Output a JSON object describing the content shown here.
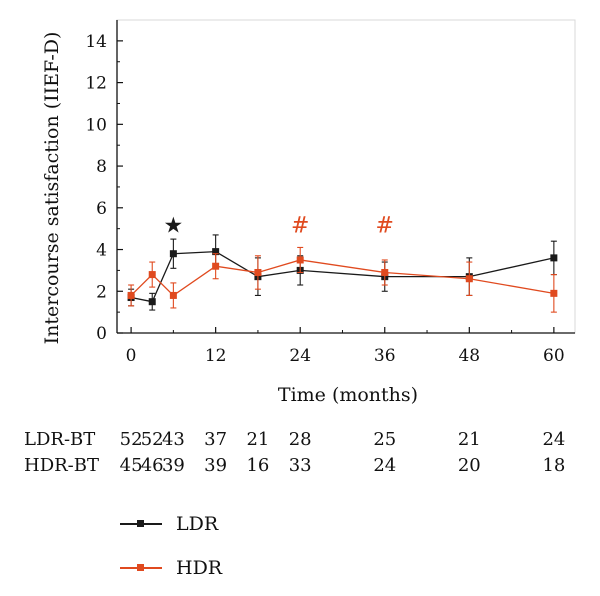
{
  "chart_data": {
    "type": "line",
    "xlabel": "Time (months)",
    "ylabel": "Intercourse satisfaction (IIEF-D)",
    "xlim": [
      -2,
      63
    ],
    "ylim": [
      0,
      15
    ],
    "x_ticks": [
      0,
      12,
      24,
      36,
      48,
      60
    ],
    "y_ticks": [
      0,
      2,
      4,
      6,
      8,
      10,
      12,
      14
    ],
    "grid": false,
    "series": [
      {
        "name": "LDR",
        "color": "#1a1a1a",
        "x": [
          0,
          3,
          6,
          12,
          18,
          24,
          36,
          48,
          60
        ],
        "values": [
          1.7,
          1.5,
          3.8,
          3.9,
          2.7,
          3.0,
          2.7,
          2.7,
          3.6
        ],
        "error": [
          0.4,
          0.4,
          0.7,
          0.8,
          0.9,
          0.7,
          0.7,
          0.9,
          0.8
        ]
      },
      {
        "name": "HDR",
        "color": "#e04a1f",
        "x": [
          0,
          3,
          6,
          12,
          18,
          24,
          36,
          48,
          60
        ],
        "values": [
          1.8,
          2.8,
          1.8,
          3.2,
          2.9,
          3.5,
          2.9,
          2.6,
          1.9
        ],
        "error": [
          0.5,
          0.6,
          0.6,
          0.6,
          0.8,
          0.6,
          0.6,
          0.8,
          0.9
        ]
      }
    ],
    "annotations": [
      {
        "text": "★",
        "x": 6,
        "y": 5.2,
        "color": "#1a1a1a"
      },
      {
        "text": "#",
        "x": 24,
        "y": 5.2,
        "color": "#e04a1f"
      },
      {
        "text": "#",
        "x": 36,
        "y": 5.2,
        "color": "#e04a1f"
      }
    ],
    "number_at_risk": {
      "x": [
        0,
        3,
        6,
        12,
        18,
        24,
        36,
        48,
        60
      ],
      "rows": [
        {
          "label": "LDR-BT",
          "values": [
            "52",
            "52",
            "43",
            "37",
            "21",
            "28",
            "25",
            "21",
            "24"
          ]
        },
        {
          "label": "HDR-BT",
          "values": [
            "45",
            "46",
            "39",
            "39",
            "16",
            "33",
            "24",
            "20",
            "18"
          ]
        }
      ]
    },
    "legend": {
      "position": "bottom-left",
      "items": [
        {
          "label": "LDR",
          "color": "#1a1a1a"
        },
        {
          "label": "HDR",
          "color": "#e04a1f"
        }
      ]
    }
  }
}
